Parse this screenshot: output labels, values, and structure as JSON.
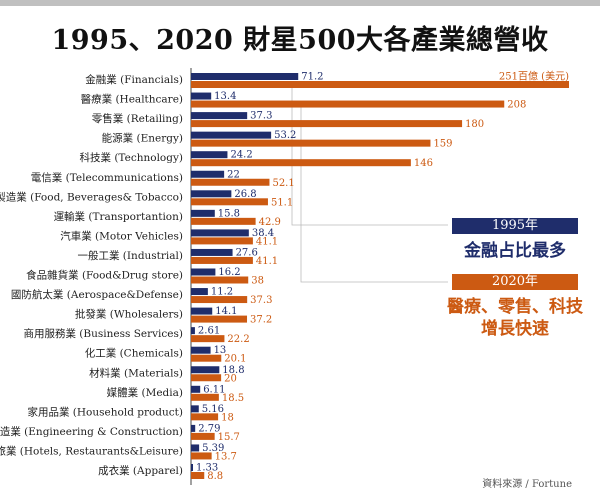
{
  "title": "1995、2020 財星500大各產業總營收",
  "note_1995": "1995年",
  "note_1995_text": "金融占比最多",
  "note_2020": "2020年",
  "note_2020_text_line1": "醫療、零售、科技",
  "note_2020_text_line2": "增長快速",
  "source": "資料來源 / Fortune",
  "colors": {
    "y1995": "#1f2d6b",
    "y2020": "#cc5a12"
  },
  "chart_data": {
    "type": "bar",
    "orientation": "horizontal",
    "title": "1995、2020 財星500大各產業總營收",
    "categories": [
      "金融業 (Financials)",
      "醫療業 (Healthcare)",
      "零售業 (Retailing)",
      "能源業 (Energy)",
      "科技業 (Technology)",
      "電信業 (Telecommunications)",
      "食品製造業 (Food, Beverages& Tobacco)",
      "運輸業 (Transportantion)",
      "汽車業 (Motor Vehicles)",
      "一般工業 (Industrial)",
      "食品雜貨業 (Food&Drug store)",
      "國防航太業 (Aerospace&Defense)",
      "批發業 (Wholesalers)",
      "商用服務業 (Business Services)",
      "化工業 (Chemicals)",
      "材料業 (Materials)",
      "媒體業 (Media)",
      "家用品業 (Household product)",
      "營造業 (Engineering & Construction)",
      "餐旅業 (Hotels, Restaurants&Leisure)",
      "成衣業 (Apparel)"
    ],
    "series": [
      {
        "name": "1995年",
        "values": [
          71.2,
          13.4,
          37.3,
          53.2,
          24.2,
          22,
          26.8,
          15.8,
          38.4,
          27.6,
          16.2,
          11.2,
          14.1,
          2.61,
          13,
          18.8,
          6.11,
          5.16,
          2.79,
          5.39,
          1.33
        ]
      },
      {
        "name": "2020年",
        "values": [
          251,
          208,
          180,
          159,
          146,
          52.1,
          51.1,
          42.9,
          41.1,
          41.1,
          38,
          37.3,
          37.2,
          22.2,
          20.1,
          20,
          18.5,
          18,
          15.7,
          13.7,
          8.8
        ]
      }
    ],
    "value_labels_1995": [
      "71.2",
      "13.4",
      "37.3",
      "53.2",
      "24.2",
      "22",
      "26.8",
      "15.8",
      "38.4",
      "27.6",
      "16.2",
      "11.2",
      "14.1",
      "2.61",
      "13",
      "18.8",
      "6.11",
      "5.16",
      "2.79",
      "5.39",
      "1.33"
    ],
    "value_labels_2020": [
      "251百億 (美元)",
      "208",
      "180",
      "159",
      "146",
      "52.1",
      "51.1",
      "42.9",
      "41.1",
      "41.1",
      "38",
      "37.3",
      "37.2",
      "22.2",
      "20.1",
      "20",
      "18.5",
      "18",
      "15.7",
      "13.7",
      "8.8"
    ],
    "xlim": [
      0,
      251
    ],
    "grid": false,
    "legend": "right"
  }
}
